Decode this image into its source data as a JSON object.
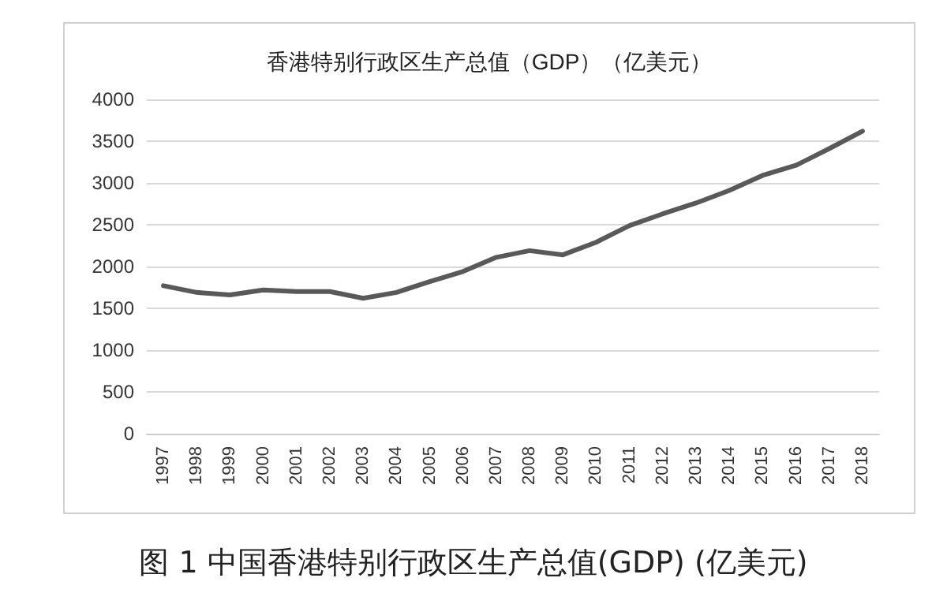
{
  "chart_data": {
    "type": "line",
    "title": "香港特别行政区生产总值（GDP）（亿美元）",
    "annotations": [
      "图 1  中国香港特别行政区生产总值(GDP)  (亿美元)"
    ],
    "categories": [
      "1997",
      "1998",
      "1999",
      "2000",
      "2001",
      "2002",
      "2003",
      "2004",
      "2005",
      "2006",
      "2007",
      "2008",
      "2009",
      "2010",
      "2011",
      "2012",
      "2013",
      "2014",
      "2015",
      "2016",
      "2017",
      "2018"
    ],
    "values": [
      1770,
      1690,
      1660,
      1720,
      1700,
      1700,
      1620,
      1690,
      1820,
      1940,
      2110,
      2190,
      2140,
      2290,
      2490,
      2630,
      2760,
      2910,
      3090,
      3210,
      3410,
      3620
    ],
    "color": "#595959",
    "ylim": [
      0,
      4000
    ],
    "yticks": [
      0,
      500,
      1000,
      1500,
      2000,
      2500,
      3000,
      3500,
      4000
    ],
    "grid": "y",
    "marker": "none",
    "line_style": "solid"
  }
}
